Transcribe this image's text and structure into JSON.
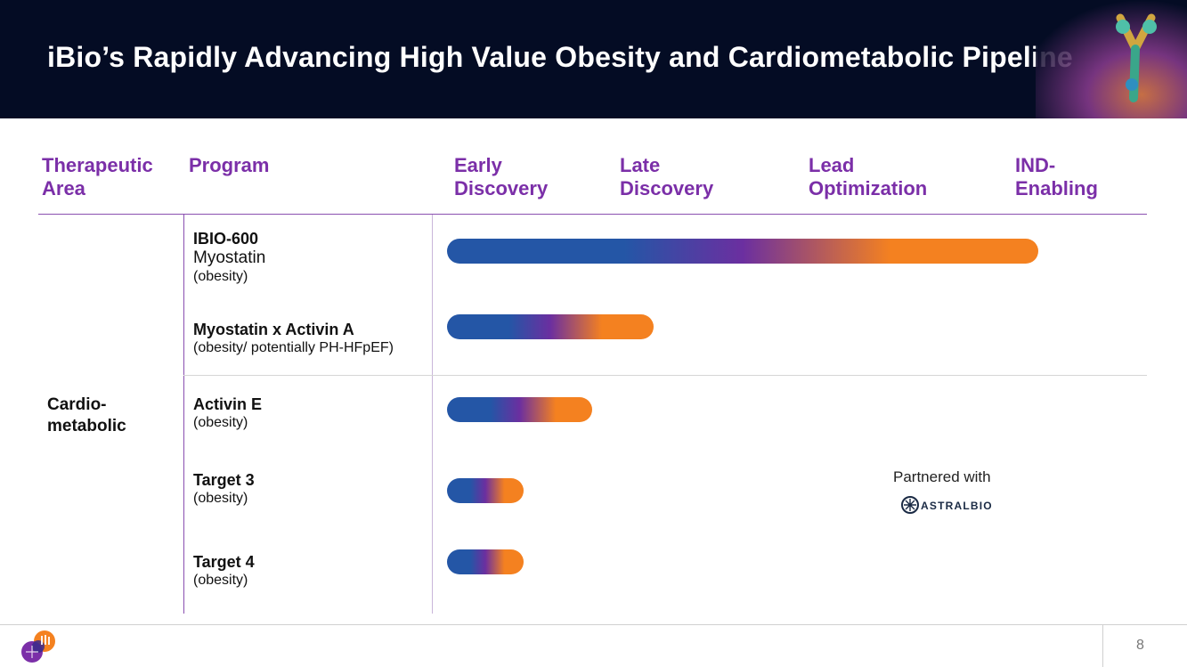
{
  "slide": {
    "title": "iBio’s Rapidly Advancing High Value Obesity and Cardiometabolic Pipeline",
    "page_number": "8"
  },
  "columns": {
    "therapeutic_area": [
      "Therapeutic",
      "Area"
    ],
    "program": "Program",
    "stages": [
      [
        "Early",
        "Discovery"
      ],
      [
        "Late",
        "Discovery"
      ],
      [
        "Lead",
        "Optimization"
      ],
      [
        "IND-",
        "Enabling"
      ]
    ]
  },
  "therapeutic_area": [
    "Cardio-",
    "metabolic"
  ],
  "programs": [
    {
      "name": "IBIO-600",
      "subtitle": "Myostatin",
      "note": "(obesity)",
      "progress": 1.0
    },
    {
      "name": "Myostatin x Activin A",
      "note": "(obesity/ potentially PH-HFpEF)",
      "progress": 0.35
    },
    {
      "name": "Activin E",
      "note": "(obesity)",
      "progress": 0.245
    },
    {
      "name": "Target 3",
      "note": "(obesity)",
      "progress": 0.13
    },
    {
      "name": "Target 4",
      "note": "(obesity)",
      "progress": 0.13
    }
  ],
  "partner": {
    "label": "Partnered with",
    "logo_text": "ASTRALBIO"
  },
  "colors": {
    "header_bg": "#040c24",
    "accent_purple": "#7b2fa8",
    "bar_blue": "#2456a6",
    "bar_purple": "#6b2fa0",
    "bar_orange": "#f48120"
  }
}
